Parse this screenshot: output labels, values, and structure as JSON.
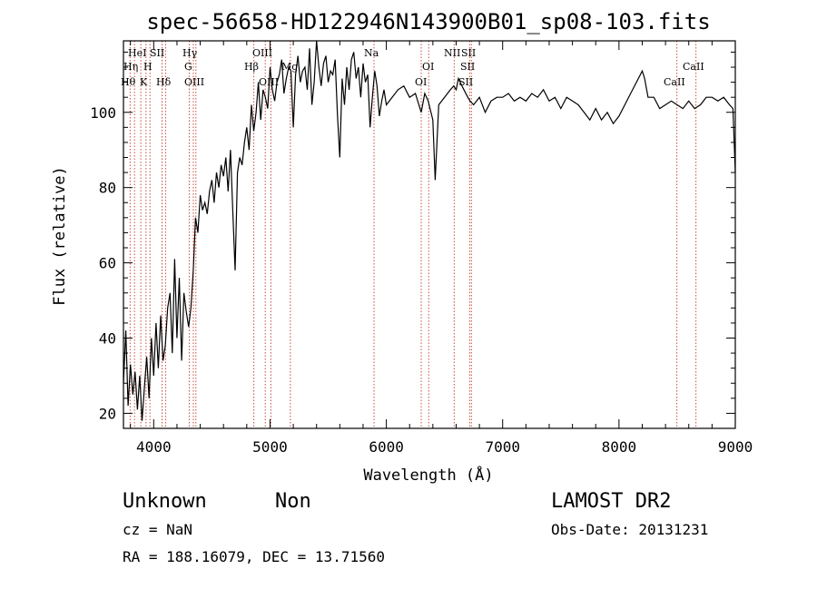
{
  "chart_data": {
    "type": "line",
    "title": "spec-56658-HD122946N143900B01_sp08-103.fits",
    "xlabel": "Wavelength (Å)",
    "ylabel": "Flux (relative)",
    "xlim": [
      3740,
      9000
    ],
    "ylim": [
      16,
      119
    ],
    "x_ticks": [
      4000,
      5000,
      6000,
      7000,
      8000,
      9000
    ],
    "y_ticks": [
      20,
      40,
      60,
      80,
      100
    ],
    "series": [
      {
        "x": [
          3740,
          3760,
          3780,
          3800,
          3820,
          3840,
          3860,
          3880,
          3900,
          3920,
          3940,
          3960,
          3980,
          4000,
          4020,
          4040,
          4060,
          4080,
          4100,
          4120,
          4140,
          4160,
          4180,
          4200,
          4220,
          4240,
          4260,
          4280,
          4300,
          4320,
          4340,
          4360,
          4380,
          4400,
          4420,
          4440,
          4460,
          4480,
          4500,
          4520,
          4540,
          4560,
          4580,
          4600,
          4620,
          4640,
          4660,
          4680,
          4700,
          4720,
          4740,
          4760,
          4780,
          4800,
          4820,
          4840,
          4860,
          4880,
          4900,
          4920,
          4940,
          4960,
          4980,
          5000,
          5020,
          5040,
          5060,
          5080,
          5100,
          5120,
          5140,
          5160,
          5180,
          5200,
          5220,
          5240,
          5260,
          5280,
          5300,
          5320,
          5340,
          5360,
          5380,
          5400,
          5420,
          5440,
          5460,
          5480,
          5500,
          5520,
          5540,
          5560,
          5580,
          5600,
          5620,
          5640,
          5660,
          5680,
          5700,
          5720,
          5740,
          5760,
          5780,
          5800,
          5820,
          5840,
          5860,
          5880,
          5900,
          5920,
          5940,
          5960,
          5980,
          6000,
          6050,
          6100,
          6150,
          6200,
          6250,
          6300,
          6330,
          6360,
          6400,
          6420,
          6450,
          6500,
          6550,
          6580,
          6600,
          6620,
          6650,
          6700,
          6720,
          6750,
          6800,
          6850,
          6900,
          6950,
          7000,
          7050,
          7100,
          7150,
          7200,
          7250,
          7300,
          7350,
          7400,
          7450,
          7500,
          7550,
          7600,
          7650,
          7700,
          7750,
          7800,
          7850,
          7900,
          7950,
          8000,
          8050,
          8100,
          8150,
          8200,
          8220,
          8250,
          8300,
          8350,
          8400,
          8450,
          8500,
          8550,
          8600,
          8650,
          8700,
          8750,
          8800,
          8850,
          8900,
          8950,
          8980,
          9000
        ],
        "y": [
          28,
          42,
          22,
          33,
          25,
          31,
          21,
          30,
          18,
          27,
          35,
          24,
          40,
          30,
          44,
          32,
          46,
          34,
          38,
          48,
          52,
          36,
          61,
          40,
          56,
          34,
          52,
          47,
          43,
          48,
          58,
          72,
          68,
          78,
          74,
          76,
          73,
          79,
          82,
          76,
          84,
          80,
          86,
          83,
          88,
          79,
          90,
          74,
          58,
          84,
          88,
          86,
          92,
          96,
          90,
          102,
          95,
          100,
          108,
          98,
          106,
          104,
          101,
          112,
          106,
          103,
          108,
          110,
          114,
          105,
          109,
          112,
          111,
          96,
          110,
          115,
          108,
          111,
          112,
          106,
          117,
          102,
          108,
          119,
          112,
          107,
          113,
          115,
          108,
          111,
          110,
          114,
          99,
          88,
          109,
          102,
          112,
          106,
          114,
          116,
          109,
          112,
          104,
          113,
          108,
          110,
          96,
          104,
          111,
          107,
          99,
          103,
          106,
          102,
          104,
          106,
          107,
          104,
          105,
          100,
          105,
          103,
          98,
          82,
          102,
          104,
          106,
          107,
          106,
          109,
          107,
          104,
          103,
          102,
          104,
          100,
          103,
          104,
          104,
          105,
          103,
          104,
          103,
          105,
          104,
          106,
          103,
          104,
          101,
          104,
          103,
          102,
          100,
          98,
          101,
          98,
          100,
          97,
          99,
          102,
          105,
          108,
          111,
          109,
          104,
          104,
          101,
          102,
          103,
          102,
          101,
          103,
          101,
          102,
          104,
          104,
          103,
          104,
          102,
          101,
          84
        ]
      }
    ],
    "lines": [
      {
        "name": "Hθ",
        "x": 3797
      },
      {
        "name": "Hη",
        "x": 3835
      },
      {
        "name": "HeI",
        "x": 3889
      },
      {
        "name": "K",
        "x": 3934
      },
      {
        "name": "H",
        "x": 3968
      },
      {
        "name": "SII",
        "x": 4072
      },
      {
        "name": "Hδ",
        "x": 4102
      },
      {
        "name": "G",
        "x": 4305
      },
      {
        "name": "Hγ",
        "x": 4341
      },
      {
        "name": "OIII",
        "x": 4363
      },
      {
        "name": "Hβ",
        "x": 4861
      },
      {
        "name": "OIII",
        "x": 4959
      },
      {
        "name": "OIII",
        "x": 5007
      },
      {
        "name": "Mg",
        "x": 5175
      },
      {
        "name": "Na",
        "x": 5894
      },
      {
        "name": "OI",
        "x": 6300
      },
      {
        "name": "OI",
        "x": 6364
      },
      {
        "name": "NII",
        "x": 6583
      },
      {
        "name": "SII",
        "x": 6716
      },
      {
        "name": "SII",
        "x": 6731
      },
      {
        "name": "CaII",
        "x": 8498
      },
      {
        "name": "CaII",
        "x": 8662
      }
    ]
  },
  "labels": {
    "hth": "Hθ",
    "heta": "Hη",
    "hei": "HeI",
    "sii_1": "SII",
    "k": "K",
    "h": "H",
    "hdelta": "Hδ",
    "hgamma": "Hγ",
    "g": "G",
    "oiii_1": "OIII",
    "oiii_2": "OIII",
    "hbeta": "Hβ",
    "oiii_3": "OIII",
    "mg": "Mg",
    "na": "Na",
    "oi": "OI",
    "oi_2": "OI",
    "nii": "NII",
    "sii_2": "SII",
    "sii_3": "SII",
    "sii_4": "SII",
    "caii_1": "CaII",
    "caii_2": "CaII"
  },
  "info": {
    "class": "Unknown",
    "subclass": "Non",
    "survey": "LAMOST DR2",
    "cz": "cz = NaN",
    "obs_date": "Obs-Date: 20131231",
    "radec": "RA = 188.16079, DEC =  13.71560"
  }
}
